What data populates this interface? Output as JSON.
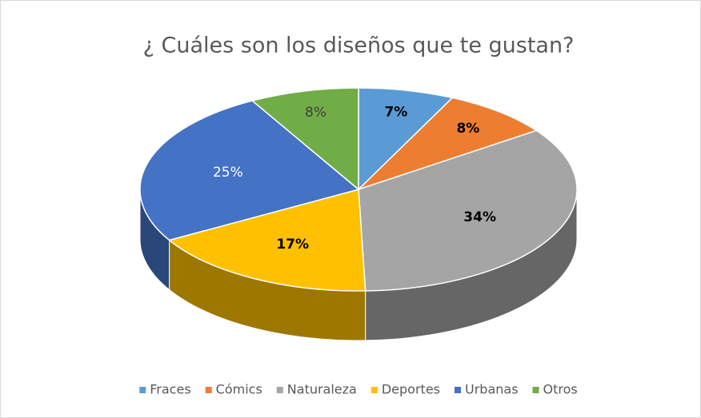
{
  "chart_data": {
    "type": "pie",
    "title": "¿ Cuáles son los diseños que te gustan?",
    "categories": [
      "Fraces",
      "Cómics",
      "Naturaleza",
      "Deportes",
      "Urbanas",
      "Otros"
    ],
    "values": [
      7,
      8,
      34,
      17,
      25,
      8
    ],
    "value_labels": [
      "7%",
      "8%",
      "34%",
      "17%",
      "25%",
      "8%"
    ],
    "colors": [
      "#5b9bd5",
      "#ed7d31",
      "#a5a5a5",
      "#ffc000",
      "#4472c4",
      "#70ad47"
    ],
    "label_colors": [
      "#000000",
      "#000000",
      "#000000",
      "#000000",
      "#ffffff",
      "#404040"
    ],
    "legend": "bottom"
  }
}
